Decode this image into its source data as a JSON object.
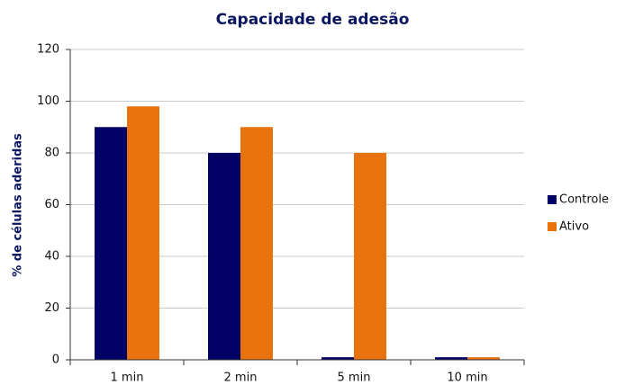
{
  "chart_data": {
    "type": "bar",
    "title": "Capacidade de adesão",
    "y_label": "% de células aderidas",
    "categories": [
      "1 min",
      "2 min",
      "5 min",
      "10 min"
    ],
    "series": [
      {
        "name": "Controle",
        "color": "#000066",
        "values": [
          90,
          80,
          1,
          1
        ]
      },
      {
        "name": "Ativo",
        "color": "#e8720c",
        "values": [
          98,
          90,
          80,
          1
        ]
      }
    ],
    "ylim": [
      0,
      120
    ],
    "yticks": [
      0,
      20,
      40,
      60,
      80,
      100,
      120
    ],
    "grid": true,
    "legend": "right"
  }
}
